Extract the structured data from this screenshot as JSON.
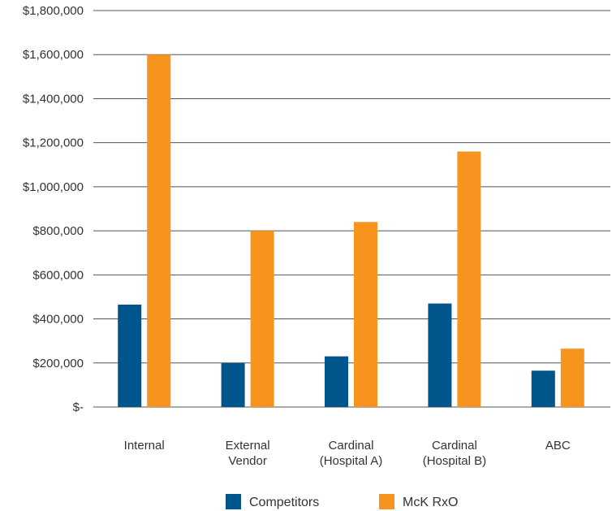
{
  "chart_data": {
    "type": "bar",
    "title": "",
    "xlabel": "",
    "ylabel": "",
    "ylim": [
      0,
      1800000
    ],
    "yticks": [
      0,
      200000,
      400000,
      600000,
      800000,
      1000000,
      1200000,
      1400000,
      1600000,
      1800000
    ],
    "ytick_labels": [
      "$-",
      "$200,000",
      "$400,000",
      "$600,000",
      "$800,000",
      "$1,000,000",
      "$1,200,000",
      "$1,400,000",
      "$1,600,000",
      "$1,800,000"
    ],
    "categories": [
      [
        "Internal"
      ],
      [
        "External",
        "Vendor"
      ],
      [
        "Cardinal",
        "(Hospital A)"
      ],
      [
        "Cardinal",
        "(Hospital B)"
      ],
      [
        "ABC"
      ]
    ],
    "series": [
      {
        "name": "Competitors",
        "color": "#00558c",
        "values": [
          465000,
          200000,
          230000,
          470000,
          165000
        ]
      },
      {
        "name": "McK RxO",
        "color": "#f7941d",
        "values": [
          1600000,
          800000,
          840000,
          1160000,
          265000
        ]
      }
    ],
    "grid": true,
    "legend": "bottom"
  }
}
